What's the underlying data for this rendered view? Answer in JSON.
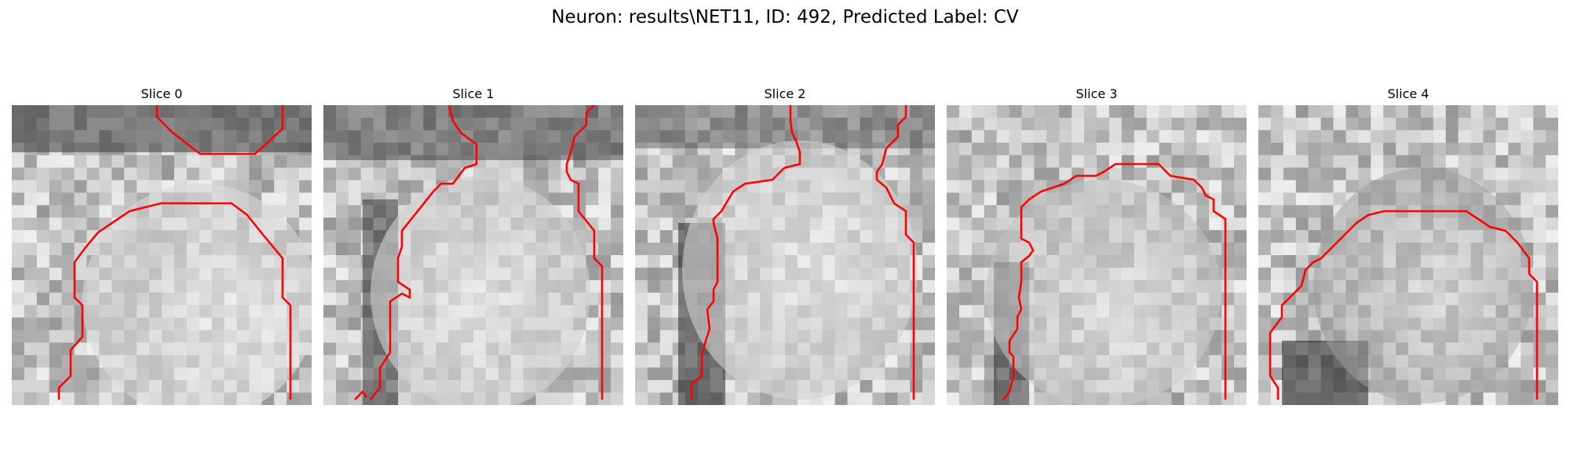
{
  "figure": {
    "title": "Neuron: results\\NET11, ID: 492, Predicted Label: CV"
  },
  "colors": {
    "contour": "#ff0000",
    "background": "#ffffff"
  },
  "panels": [
    {
      "title": "Slice 0"
    },
    {
      "title": "Slice 1"
    },
    {
      "title": "Slice 2"
    },
    {
      "title": "Slice 3"
    },
    {
      "title": "Slice 4"
    }
  ]
}
